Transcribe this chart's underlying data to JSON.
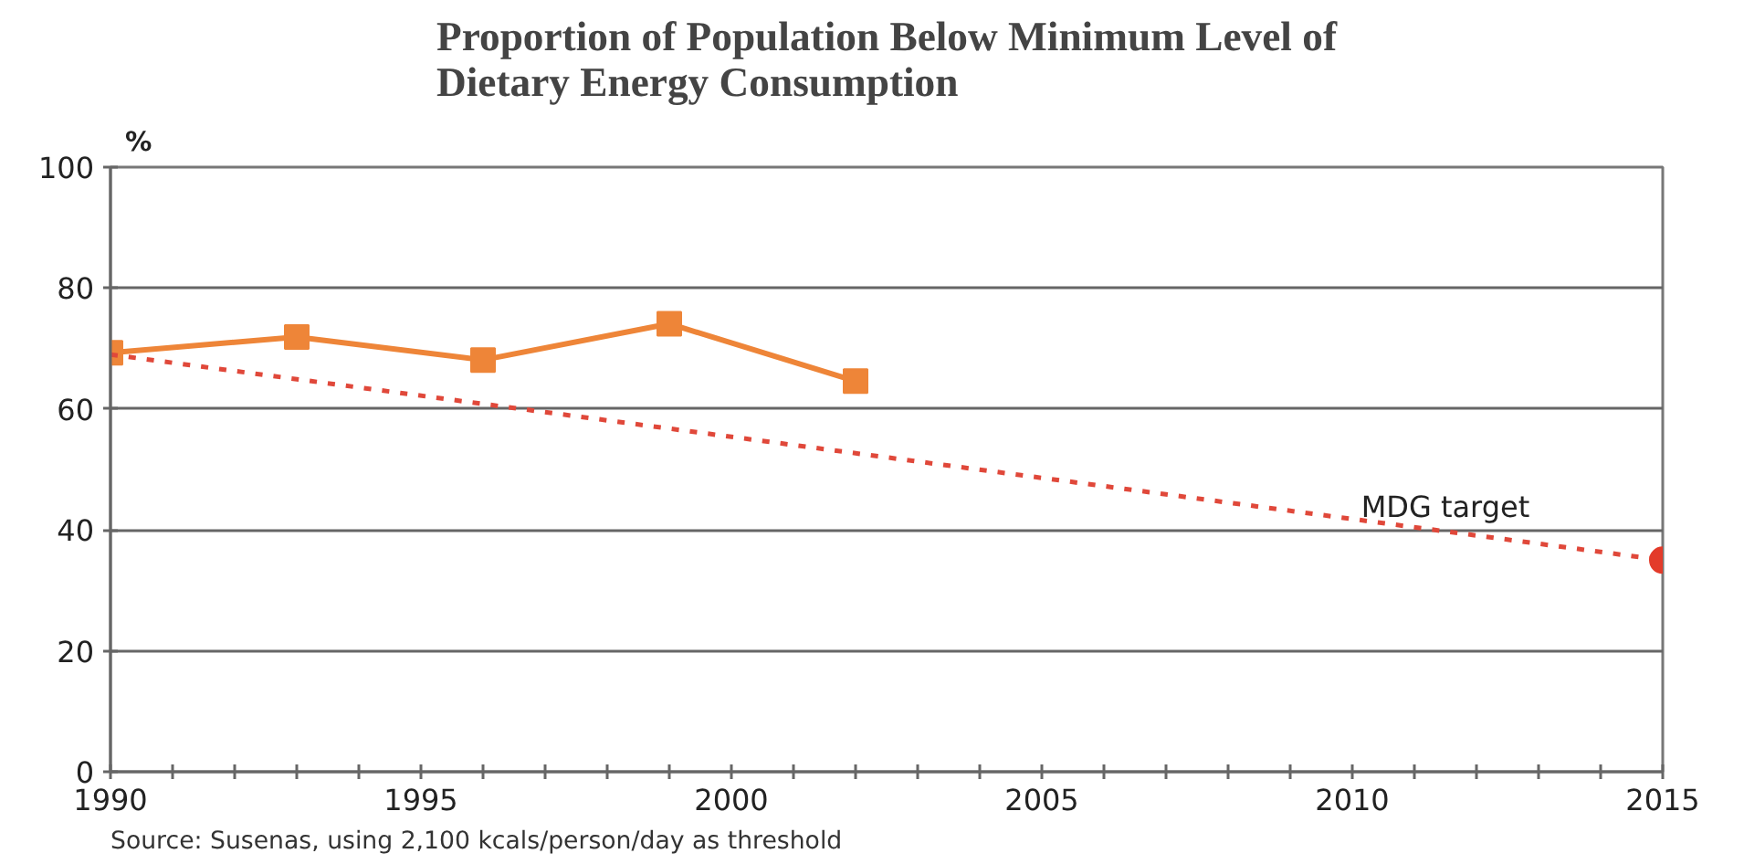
{
  "chart_data": {
    "type": "line",
    "title": "Proportion of Population Below Minimum Level of Dietary Energy Consumption",
    "ylabel": "%",
    "xlim": [
      1990,
      2015
    ],
    "ylim": [
      0,
      100
    ],
    "xticks": [
      1990,
      {
        "value": 1991,
        "label": null
      },
      {
        "value": 1992,
        "label": null
      },
      {
        "value": 1993,
        "label": null
      },
      {
        "value": 1994,
        "label": null
      },
      1995,
      {
        "value": 1996,
        "label": null
      },
      {
        "value": 1997,
        "label": null
      },
      {
        "value": 1998,
        "label": null
      },
      {
        "value": 1999,
        "label": null
      },
      2000,
      {
        "value": 2001,
        "label": null
      },
      {
        "value": 2002,
        "label": null
      },
      {
        "value": 2003,
        "label": null
      },
      {
        "value": 2004,
        "label": null
      },
      2005,
      {
        "value": 2006,
        "label": null
      },
      {
        "value": 2007,
        "label": null
      },
      {
        "value": 2008,
        "label": null
      },
      {
        "value": 2009,
        "label": null
      },
      2010,
      {
        "value": 2011,
        "label": null
      },
      {
        "value": 2012,
        "label": null
      },
      {
        "value": 2013,
        "label": null
      },
      {
        "value": 2014,
        "label": null
      },
      2015
    ],
    "yticks": [
      0,
      20,
      40,
      60,
      80,
      100
    ],
    "grid": "y",
    "series": [
      {
        "color": "#ee8538",
        "x": [
          1990,
          1993,
          1996,
          1999,
          2002
        ],
        "values": [
          69.3,
          71.9,
          68.1,
          74.1,
          64.6
        ],
        "marker": "square",
        "line_style": "solid"
      },
      {
        "name": "MDG target",
        "color": "#e0483a",
        "x": [
          1990,
          2015
        ],
        "values": [
          69,
          35
        ],
        "marker": "none",
        "line_style": "dotted"
      },
      {
        "type": "scatter",
        "color": "#e33b2a",
        "x": [
          2015
        ],
        "values": [
          35
        ],
        "marker": "circle"
      }
    ],
    "annotations": [
      "Source: Susenas, using 2,100 kcals/person/day as threshold"
    ]
  }
}
